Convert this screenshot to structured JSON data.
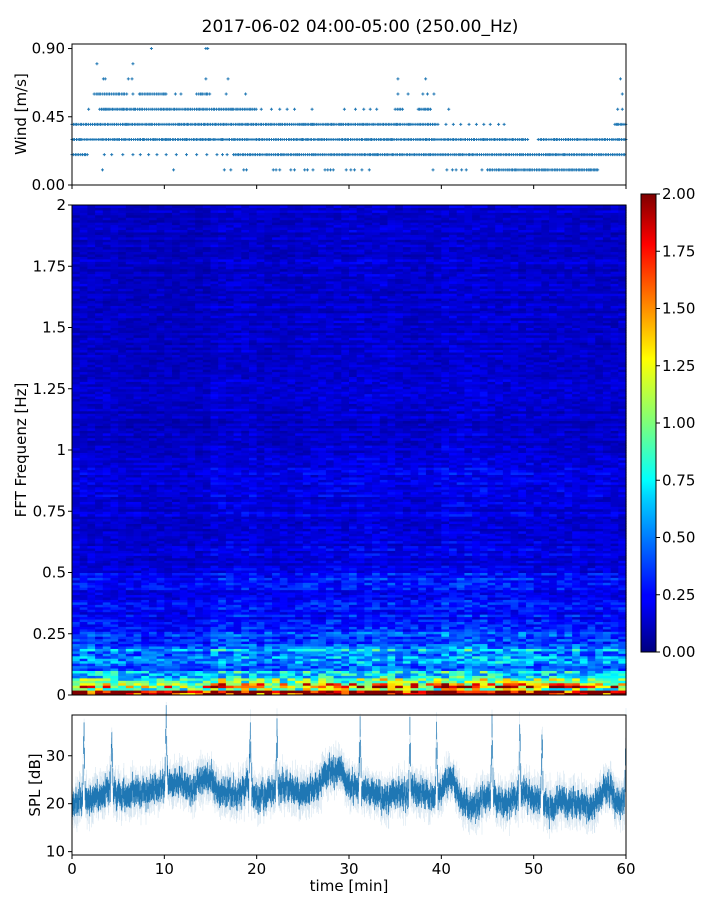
{
  "title": "2017-06-02 04:00-05:00 (250.00_Hz)",
  "colors": {
    "series": "#1f77b4",
    "colormap": "jet"
  },
  "chart_data": [
    {
      "type": "scatter",
      "marker": "+",
      "ylabel": "Wind [m/s]",
      "xlim": [
        0,
        60
      ],
      "ylim": [
        0,
        0.93
      ],
      "yticks": [
        "0.00",
        "0.45",
        "0.90"
      ],
      "xticks": [
        0,
        10,
        20,
        30,
        40,
        50,
        60
      ],
      "xtick_labels_shown": false,
      "levels": [
        {
          "y": 0.1,
          "dense_ranges": [
            [
              45,
              57
            ]
          ],
          "sparse_points": [
            3.3,
            11,
            16.5,
            17.2,
            18.6,
            18.9,
            21.8,
            22.1,
            22.5,
            23.7,
            24.1,
            25.2,
            25.5,
            26.1,
            27.4,
            27.7,
            28,
            28.3,
            29.7,
            30.2,
            30.6,
            31.4,
            32.2,
            39.1,
            40.6,
            41.2,
            41.6,
            42.2,
            42.7,
            44.4
          ]
        },
        {
          "y": 0.2,
          "dense_ranges": [
            [
              0,
              1.7
            ],
            [
              17.5,
              60
            ]
          ],
          "sparse_points": [
            3.5,
            4.3,
            5.5,
            6.6,
            7.4,
            8.3,
            9.2,
            10.2,
            11.3,
            12.4,
            13.5,
            14.6,
            15.7,
            16.3,
            16.8
          ]
        },
        {
          "y": 0.3,
          "dense_ranges": [
            [
              0,
              49.5
            ],
            [
              50.5,
              60
            ]
          ],
          "sparse_points": [
            52.3,
            53.8
          ]
        },
        {
          "y": 0.4,
          "dense_ranges": [
            [
              0,
              39.7
            ],
            [
              58.8,
              60
            ]
          ],
          "sparse_points": [
            40.5,
            41.3,
            42.1,
            43,
            43.8,
            44.6,
            45.3,
            46.2,
            46.8
          ]
        },
        {
          "y": 0.5,
          "dense_ranges": [
            [
              3,
              20
            ],
            [
              35,
              35.8
            ],
            [
              37.5,
              39
            ]
          ],
          "sparse_points": [
            1.8,
            20.5,
            21.6,
            22.5,
            23.3,
            24.1,
            26,
            29.5,
            30.7,
            31.6,
            32.3,
            33,
            40.8,
            59.1,
            59.6
          ]
        },
        {
          "y": 0.6,
          "dense_ranges": [
            [
              2.4,
              6
            ],
            [
              7.3,
              10.3
            ],
            [
              13.5,
              15
            ]
          ],
          "sparse_points": [
            6.6,
            11.2,
            11.8,
            16.7,
            18.8,
            35.3,
            36.4,
            38,
            38.5,
            39.2,
            59.6
          ]
        },
        {
          "y": 0.7,
          "dense_ranges": [],
          "sparse_points": [
            3.4,
            3.6,
            6.1,
            6.5,
            14.5,
            16.9,
            35.3,
            38.3,
            59.4
          ]
        },
        {
          "y": 0.8,
          "dense_ranges": [],
          "sparse_points": [
            2.7,
            6.6
          ]
        },
        {
          "y": 0.9,
          "dense_ranges": [],
          "sparse_points": [
            8.6,
            14.5,
            14.7
          ]
        }
      ]
    },
    {
      "type": "heatmap",
      "ylabel": "FFT Frequenz [Hz]",
      "xlim": [
        0,
        60
      ],
      "ylim": [
        0,
        2
      ],
      "yticks": [
        "0",
        "0.25",
        "0.5",
        "0.75",
        "1",
        "1.25",
        "1.5",
        "1.75",
        "2"
      ],
      "colormap": "jet",
      "clim": [
        0,
        2
      ],
      "colorbar_ticks": [
        "0.00",
        "0.25",
        "0.50",
        "0.75",
        "1.00",
        "1.25",
        "1.50",
        "1.75",
        "2.00"
      ],
      "frequency_band_edges": [
        0,
        0.02,
        0.05,
        0.1,
        0.2,
        0.3,
        0.5,
        1.0,
        2.0
      ],
      "band_mean_level": [
        1.8,
        1.25,
        0.8,
        0.5,
        0.35,
        0.25,
        0.18,
        0.14
      ],
      "time_block_minutes": [
        0,
        5,
        10,
        15,
        20,
        25,
        30,
        35,
        40,
        45,
        50,
        55
      ],
      "time_block_factor": [
        1.0,
        0.9,
        0.9,
        1.1,
        1.0,
        1.1,
        1.15,
        1.05,
        1.2,
        1.1,
        1.05,
        1.0
      ]
    },
    {
      "type": "line",
      "ylabel": "SPL [dB]",
      "xlabel": "time [min]",
      "xlim": [
        0,
        60
      ],
      "ylim": [
        9.3,
        38.5
      ],
      "yticks": [
        10,
        20,
        30
      ],
      "xticks": [
        0,
        10,
        20,
        30,
        40,
        50,
        60
      ],
      "x": [
        0,
        1,
        2,
        3,
        4,
        5,
        6,
        7,
        8,
        9,
        10,
        11,
        12,
        13,
        14,
        15,
        16,
        17,
        18,
        19,
        20,
        21,
        22,
        23,
        24,
        25,
        26,
        27,
        28,
        29,
        30,
        31,
        32,
        33,
        34,
        35,
        36,
        37,
        38,
        39,
        40,
        41,
        42,
        43,
        44,
        45,
        46,
        47,
        48,
        49,
        50,
        51,
        52,
        53,
        54,
        55,
        56,
        57,
        58,
        59,
        60
      ],
      "y": [
        20,
        21,
        21,
        22,
        23,
        22,
        22,
        23,
        22,
        24,
        24,
        25,
        24,
        23,
        25,
        25,
        22,
        22,
        22,
        24,
        21,
        22,
        23,
        24,
        23,
        22,
        23,
        25,
        27,
        27,
        24,
        23,
        23,
        22,
        21,
        22,
        22,
        23,
        22,
        21,
        23,
        26,
        21,
        19,
        20,
        22,
        21,
        20,
        21,
        22,
        21,
        20,
        19,
        21,
        20,
        20,
        19,
        21,
        24,
        20,
        21
      ],
      "spikes": [
        [
          1.3,
          36
        ],
        [
          4.3,
          34
        ],
        [
          10.2,
          37
        ],
        [
          19.3,
          36
        ],
        [
          22.2,
          36
        ],
        [
          31.2,
          36
        ],
        [
          36.6,
          36
        ],
        [
          39.5,
          36
        ],
        [
          45.5,
          36
        ],
        [
          48.5,
          37
        ],
        [
          50.9,
          35
        ],
        [
          60,
          36
        ]
      ]
    }
  ]
}
